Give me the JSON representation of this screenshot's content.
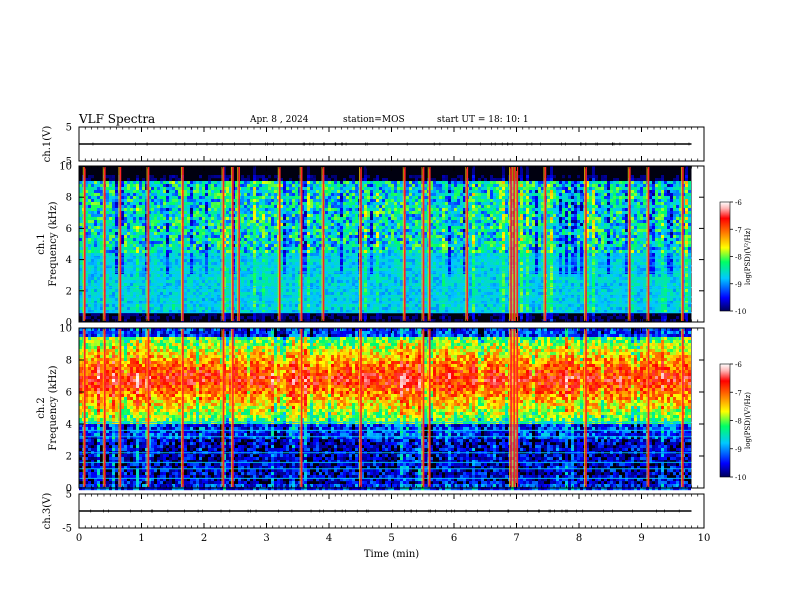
{
  "header": {
    "title": "VLF Spectra",
    "date": "Apr. 8 , 2024",
    "station": "station=MOS",
    "start": "start UT =   18: 10: 1"
  },
  "colors": {
    "background": "#000000",
    "colormap": [
      "#00005a",
      "#0000ff",
      "#00c8ff",
      "#00ff64",
      "#ffff00",
      "#ff7800",
      "#ff0000",
      "#ffb4b4",
      "#ffffff"
    ]
  },
  "chart_data": [
    {
      "type": "line",
      "name": "ch1-waveform",
      "ylabel": "ch.1(V)",
      "ylim": [
        -5,
        5
      ],
      "yticks": [
        "5",
        "-5"
      ],
      "x": [
        0,
        9.8
      ],
      "values": [
        0,
        0
      ]
    },
    {
      "type": "heatmap",
      "name": "ch1-spectrogram",
      "ylabel": "ch.1\nFrequency (kHz)",
      "ylim": [
        0,
        10
      ],
      "yticks": [
        "0",
        "2",
        "4",
        "6",
        "8",
        "10"
      ],
      "xlim": [
        0,
        10
      ],
      "colorbar": {
        "label": "log(PSD)(V²/Hz)",
        "range": [
          -10,
          -6
        ],
        "ticks": [
          "-6",
          "-7",
          "-8",
          "-9",
          "-10"
        ]
      },
      "band_kHz": [
        0.5,
        9.0
      ],
      "noise_level": -9.0,
      "broadband_times_min": [
        0.08,
        0.4,
        0.65,
        1.1,
        1.65,
        2.3,
        2.45,
        2.55,
        3.2,
        3.55,
        3.9,
        4.5,
        5.2,
        5.5,
        5.6,
        6.2,
        6.9,
        6.95,
        7.0,
        7.45,
        8.1,
        8.8,
        9.1,
        9.65
      ],
      "tones_kHz": [
        0.6,
        1.2,
        1.6,
        2.2,
        3.2,
        3.6,
        4.1
      ]
    },
    {
      "type": "heatmap",
      "name": "ch2-spectrogram",
      "ylabel": "ch.2\nFrequency (kHz)",
      "ylim": [
        0,
        10
      ],
      "yticks": [
        "0",
        "2",
        "4",
        "6",
        "8",
        "10"
      ],
      "xlim": [
        0,
        10
      ],
      "colorbar": {
        "label": "log(PSD)(V²/Hz)",
        "range": [
          -10,
          -6
        ],
        "ticks": [
          "-6",
          "-7",
          "-8",
          "-9",
          "-10"
        ]
      },
      "band_kHz": [
        4.0,
        9.5
      ],
      "peak_kHz": 6.8,
      "peak_level": -7.0,
      "broadband_times_min": [
        0.08,
        0.4,
        0.65,
        1.1,
        1.65,
        2.3,
        2.45,
        3.55,
        4.5,
        5.5,
        5.6,
        6.9,
        6.95,
        7.0,
        8.1,
        9.1,
        9.65
      ],
      "tones_kHz": [
        0.6,
        1.2,
        1.6,
        2.2,
        3.2,
        3.6,
        4.1
      ]
    },
    {
      "type": "line",
      "name": "ch3-waveform",
      "ylabel": "ch.3(V)",
      "ylim": [
        -5,
        5
      ],
      "yticks": [
        "5",
        "-5"
      ],
      "x": [
        0,
        9.8
      ],
      "values": [
        0,
        0
      ]
    }
  ],
  "x_axis": {
    "label": "Time  (min)",
    "ticks": [
      "0",
      "1",
      "2",
      "3",
      "4",
      "5",
      "6",
      "7",
      "8",
      "9",
      "10"
    ],
    "range": [
      0,
      10
    ]
  }
}
